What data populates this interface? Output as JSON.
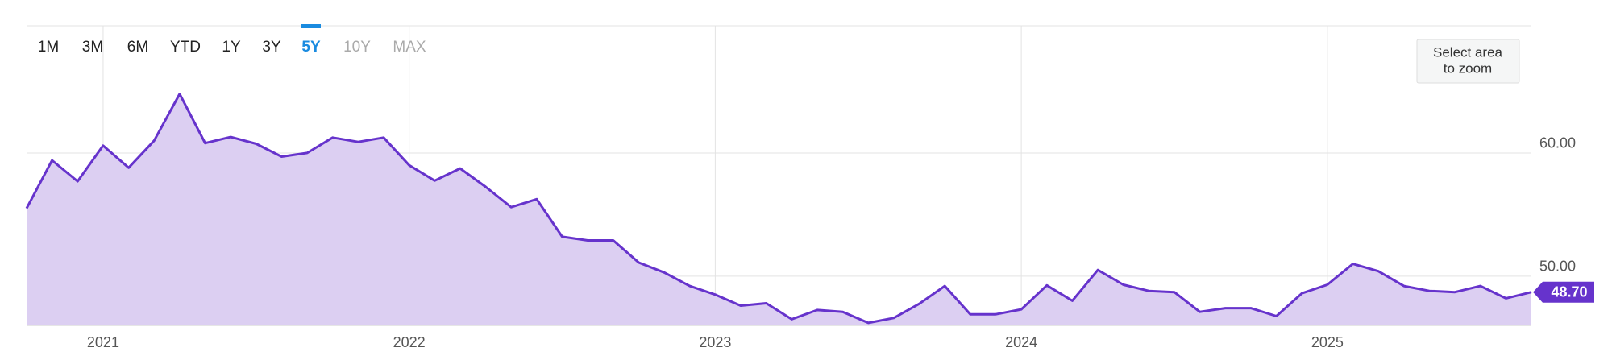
{
  "chart_data": {
    "type": "area",
    "x": [
      "2020-10",
      "2020-11",
      "2020-12",
      "2021-01",
      "2021-02",
      "2021-03",
      "2021-04",
      "2021-05",
      "2021-06",
      "2021-07",
      "2021-08",
      "2021-09",
      "2021-10",
      "2021-11",
      "2021-12",
      "2022-01",
      "2022-02",
      "2022-03",
      "2022-04",
      "2022-05",
      "2022-06",
      "2022-07",
      "2022-08",
      "2022-09",
      "2022-10",
      "2022-11",
      "2022-12",
      "2023-01",
      "2023-02",
      "2023-03",
      "2023-04",
      "2023-05",
      "2023-06",
      "2023-07",
      "2023-08",
      "2023-09",
      "2023-10",
      "2023-11",
      "2023-12",
      "2024-01",
      "2024-02",
      "2024-03",
      "2024-04",
      "2024-05",
      "2024-06",
      "2024-07",
      "2024-08",
      "2024-09",
      "2024-10",
      "2024-11",
      "2024-12",
      "2025-01",
      "2025-02",
      "2025-03",
      "2025-04",
      "2025-05",
      "2025-06",
      "2025-07",
      "2025-08",
      "2025-09"
    ],
    "values": [
      55.5,
      59.4,
      57.7,
      60.6,
      58.8,
      61.0,
      64.8,
      60.8,
      61.3,
      60.75,
      59.7,
      60.0,
      61.25,
      60.9,
      61.25,
      59.0,
      57.75,
      58.75,
      57.25,
      55.6,
      56.25,
      53.2,
      52.9,
      52.9,
      51.1,
      50.3,
      49.2,
      48.5,
      47.6,
      47.8,
      46.5,
      47.25,
      47.1,
      46.2,
      46.6,
      47.75,
      49.2,
      46.9,
      46.9,
      47.3,
      49.25,
      48.0,
      50.5,
      49.3,
      48.8,
      48.7,
      47.1,
      47.4,
      47.4,
      46.75,
      48.6,
      49.3,
      51.0,
      50.4,
      49.2,
      48.8,
      48.7,
      49.2,
      48.2,
      48.7
    ],
    "color": "#6633cc",
    "fill_color": "#dccff2",
    "xlim": [
      "2020-10",
      "2025-09"
    ],
    "xticks": [
      {
        "value": "2021-01",
        "label": "2021"
      },
      {
        "value": "2022-01",
        "label": "2022"
      },
      {
        "value": "2023-01",
        "label": "2023"
      },
      {
        "value": "2024-01",
        "label": "2024"
      },
      {
        "value": "2025-01",
        "label": "2025"
      }
    ],
    "ylim": [
      46,
      70.33
    ],
    "yticks": [
      {
        "value": 50,
        "label": "50.00"
      },
      {
        "value": 60,
        "label": "60.00"
      }
    ],
    "grid": true,
    "last_value_label": {
      "value": 48.7,
      "label": "48.70"
    }
  },
  "ui": {
    "range_buttons": [
      "1M",
      "3M",
      "6M",
      "YTD",
      "1Y",
      "3Y",
      "5Y",
      "10Y",
      "MAX"
    ],
    "selected": "5Y",
    "disabled": [
      "10Y",
      "MAX"
    ],
    "zoom_hint": [
      "Select area",
      "to zoom"
    ]
  }
}
